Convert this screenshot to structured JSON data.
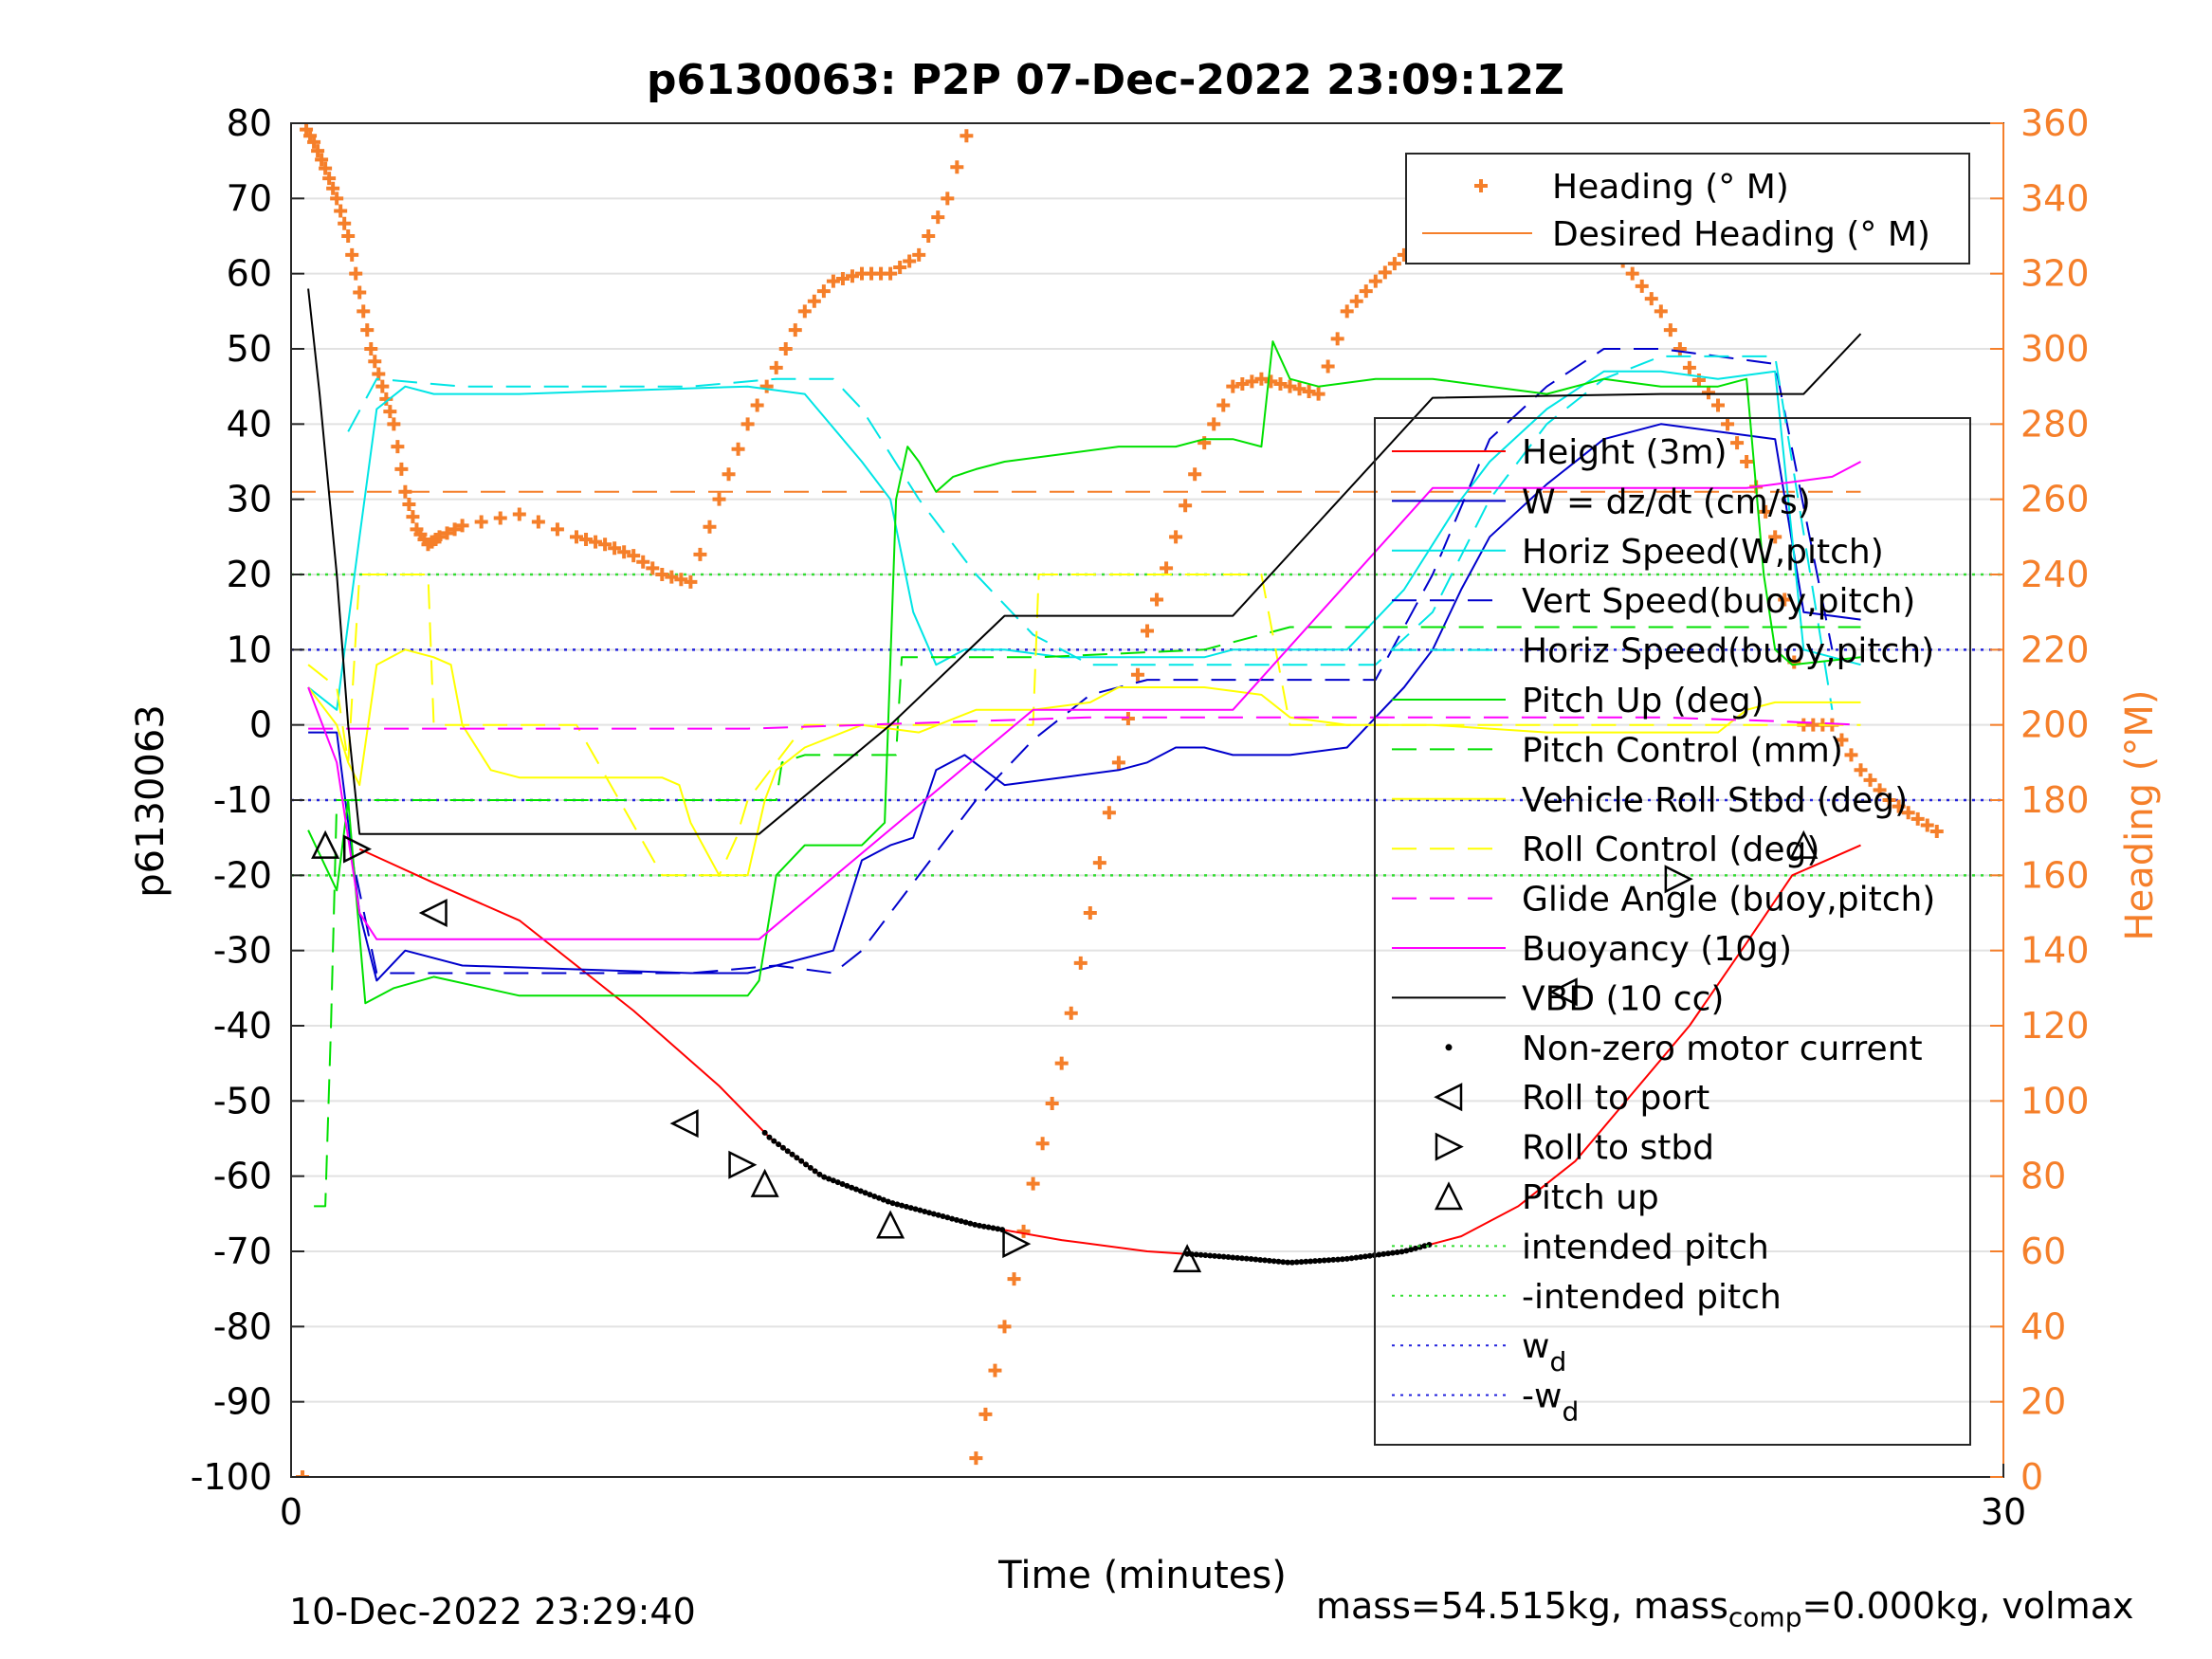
{
  "chart_data": {
    "type": "line",
    "title": "p6130063: P2P 07-Dec-2022 23:09:12Z",
    "xlabel": "Time (minutes)",
    "ylabel": "p6130063",
    "y2label": "Heading (°M)",
    "xlim": [
      0,
      30
    ],
    "ylim": [
      -100,
      80
    ],
    "y2lim": [
      0,
      360
    ],
    "xticks": [
      "0",
      "30"
    ],
    "yticks": [
      "80",
      "70",
      "60",
      "50",
      "40",
      "30",
      "20",
      "10",
      "0",
      "-10",
      "-20",
      "-30",
      "-40",
      "-50",
      "-60",
      "-70",
      "-80",
      "-90",
      "-100"
    ],
    "y2ticks": [
      "360",
      "340",
      "320",
      "300",
      "280",
      "260",
      "240",
      "220",
      "200",
      "180",
      "160",
      "140",
      "120",
      "100",
      "80",
      "60",
      "40",
      "20",
      "0"
    ],
    "grid": true,
    "colors": {
      "heading": "#f57f2a",
      "height": "#ff0000",
      "w": "#0000cc",
      "horiz": "#00e5e5",
      "pitch": "#00e000",
      "roll": "#ffff00",
      "glide": "#ff00ff",
      "vbd": "#000000"
    },
    "series": [
      {
        "name": "Heading (° M)",
        "axis": "right",
        "x": [
          0.2,
          0.4,
          0.6,
          0.8,
          1.0,
          1.2,
          1.4,
          1.6,
          1.8,
          2.0,
          2.2,
          2.4,
          2.6,
          3.0,
          4.0,
          5.0,
          5.5,
          6.0,
          6.5,
          7.0,
          7.5,
          8.0,
          8.5,
          9.0,
          9.5,
          10.0,
          10.5,
          11.0,
          11.5,
          12.0,
          12.5,
          13.0,
          13.5,
          14.0,
          14.5,
          15.0,
          15.5,
          16.0,
          16.5,
          17.0,
          17.5,
          18.0,
          18.5,
          19.0,
          19.5,
          20.0,
          20.5,
          21.0,
          21.5,
          22.0,
          22.5,
          23.0,
          23.5,
          24.0,
          24.5,
          25.0,
          25.5,
          26.0,
          26.5,
          27.0,
          27.5,
          28.0,
          28.5,
          29.0
        ],
        "y": [
          360,
          355,
          348,
          340,
          330,
          315,
          300,
          290,
          280,
          262,
          252,
          248,
          250,
          253,
          256,
          250,
          248,
          245,
          240,
          238,
          260,
          280,
          295,
          310,
          318,
          320,
          320,
          325,
          340,
          5,
          40,
          78,
          110,
          150,
          190,
          225,
          250,
          275,
          290,
          292,
          290,
          288,
          310,
          318,
          325,
          328,
          333,
          336,
          338,
          345,
          348,
          330,
          320,
          310,
          295,
          285,
          270,
          250,
          200,
          200,
          188,
          180,
          175,
          170
        ]
      },
      {
        "name": "Desired Heading (° M)",
        "axis": "right",
        "x": [
          0,
          27.5
        ],
        "y": [
          262,
          262
        ]
      },
      {
        "name": "Height (3m)",
        "x": [
          1.2,
          2.5,
          4.0,
          6.0,
          7.5,
          8.4,
          9.3,
          10.5,
          12.0,
          13.5,
          15.0,
          16.0,
          16.8,
          17.5,
          18.5,
          19.5,
          20.5,
          21.5,
          22.5,
          23.5,
          24.5,
          25.5,
          26.3,
          27.5
        ],
        "y": [
          -16.5,
          -21,
          -26,
          -38,
          -48,
          -55,
          -60,
          -63.5,
          -66.5,
          -68.5,
          -70,
          -70.5,
          -71,
          -71.5,
          -71,
          -70,
          -68,
          -64,
          -58,
          -49,
          -40,
          -29,
          -20,
          -16
        ]
      },
      {
        "name": "W = dz/dt (cm/s)",
        "x": [
          0.3,
          0.8,
          1.2,
          1.5,
          2.0,
          3.0,
          5.0,
          7.0,
          8.0,
          8.5,
          9.0,
          9.5,
          10.0,
          10.5,
          10.9,
          11.3,
          11.8,
          12.5,
          13.5,
          14.5,
          15.0,
          15.5,
          16.0,
          16.5,
          17.5,
          18.5,
          19.5,
          20.0,
          20.5,
          21.0,
          22.0,
          23.0,
          24.0,
          25.0,
          26.0,
          26.5,
          27.5
        ],
        "y": [
          -1,
          -1,
          -25,
          -34,
          -30,
          -32,
          -32.5,
          -33,
          -33,
          -32,
          -31,
          -30,
          -18,
          -16,
          -15,
          -6,
          -4,
          -8,
          -7,
          -6,
          -5,
          -3,
          -3,
          -4,
          -4,
          -3,
          5,
          10,
          18,
          25,
          32,
          38,
          40,
          39,
          38,
          15,
          14
        ]
      },
      {
        "name": "Horiz Speed(W,pitch)",
        "x": [
          0.3,
          0.8,
          1.2,
          1.5,
          2.0,
          2.5,
          4.0,
          6.0,
          8.0,
          9.0,
          10.0,
          10.5,
          10.9,
          11.3,
          11.8,
          12.5,
          13.5,
          15.0,
          16.0,
          16.5,
          17.5,
          18.5,
          19.5,
          20.0,
          20.5,
          21.0,
          22.0,
          23.0,
          24.0,
          25.0,
          26.0,
          26.5,
          27.5
        ],
        "y": [
          5,
          2,
          25,
          42,
          45,
          44,
          44,
          44.5,
          45,
          44,
          35,
          30,
          15,
          8,
          10,
          10,
          9,
          9,
          9,
          10,
          10,
          10,
          18,
          24,
          30,
          35,
          42,
          47,
          47,
          46,
          47,
          10,
          8
        ]
      },
      {
        "name": "Vert Speed(buoy,pitch)",
        "x": [
          1.0,
          1.5,
          3.0,
          5.0,
          7.0,
          8.5,
          9.5,
          10.0,
          11.0,
          12.0,
          13.0,
          14.0,
          15.0,
          16.0,
          17.5,
          19.0,
          20.0,
          21.0,
          22.0,
          23.0,
          24.0,
          25.0,
          26.0,
          27.0
        ],
        "y": [
          -15,
          -33,
          -33,
          -33,
          -33,
          -32,
          -33,
          -30,
          -20,
          -10,
          -2,
          4,
          6,
          6,
          6,
          6,
          20,
          38,
          45,
          50,
          50,
          49,
          48,
          10
        ]
      },
      {
        "name": "Horiz Speed(buoy,pitch)",
        "x": [
          1.0,
          1.5,
          3.0,
          5.0,
          7.0,
          8.5,
          9.5,
          10.0,
          11.0,
          12.0,
          13.0,
          14.0,
          15.0,
          16.0,
          17.5,
          19.0,
          20.0,
          21.0,
          22.0,
          23.0,
          24.0,
          25.0,
          26.0,
          27.0
        ],
        "y": [
          39,
          46,
          45,
          45,
          45,
          46,
          46,
          42,
          30,
          20,
          12,
          8,
          8,
          8,
          8,
          8,
          15,
          30,
          40,
          46,
          49,
          49,
          49,
          2
        ]
      },
      {
        "name": "Pitch Up (deg)",
        "x": [
          0.3,
          0.8,
          1.0,
          1.3,
          1.8,
          2.5,
          4.0,
          6.0,
          7.5,
          8.0,
          8.2,
          8.5,
          9.0,
          9.5,
          10.0,
          10.4,
          10.6,
          10.8,
          11.0,
          11.3,
          11.6,
          12.0,
          12.5,
          13.5,
          14.5,
          15.0,
          15.5,
          16.0,
          16.2,
          16.5,
          17.0,
          17.2,
          17.5,
          18.0,
          19.0,
          20.0,
          21.0,
          22.0,
          23.0,
          24.0,
          25.0,
          25.5,
          25.8,
          26.0,
          26.3,
          27.5
        ],
        "y": [
          -14,
          -22,
          -10,
          -37,
          -35,
          -33.5,
          -36,
          -36,
          -36,
          -36,
          -34,
          -20,
          -16,
          -16,
          -16,
          -13,
          30,
          37,
          35,
          31,
          33,
          34,
          35,
          36,
          37,
          37,
          37,
          38,
          38,
          38,
          37,
          51,
          46,
          45,
          46,
          46,
          45,
          44,
          46,
          45,
          45,
          46,
          20,
          10,
          8,
          9
        ]
      },
      {
        "name": "Pitch Control (mm)",
        "x": [
          0.4,
          0.6,
          0.7,
          0.8,
          1.0,
          1.5,
          2.0,
          8.5,
          8.6,
          9.0,
          10.0,
          10.6,
          10.7,
          13.0,
          13.1,
          16.0,
          17.0,
          17.5,
          18.0,
          22.0,
          25.0,
          25.5,
          26.0,
          27.5
        ],
        "y": [
          -64,
          -64,
          -40,
          -10,
          -10,
          -10,
          -10,
          -10,
          -5,
          -4,
          -4,
          -4,
          9,
          9,
          9,
          10,
          12,
          13,
          13,
          13,
          13,
          13,
          13,
          13
        ]
      },
      {
        "name": "Vehicle Roll Stbd (deg)",
        "x": [
          0.3,
          0.6,
          0.8,
          1.0,
          1.2,
          1.5,
          2.0,
          2.5,
          2.8,
          3.0,
          3.5,
          4.0,
          5.0,
          6.0,
          6.5,
          6.8,
          7.0,
          7.5,
          8.0,
          8.3,
          8.5,
          9.0,
          10.0,
          11.0,
          12.0,
          13.0,
          14.0,
          14.5,
          15.0,
          16.0,
          17.0,
          17.5,
          18.5,
          20.0,
          22.0,
          24.0,
          25.0,
          25.5,
          26.0,
          27.5
        ],
        "y": [
          5,
          2,
          0,
          -5,
          -8,
          8,
          10,
          9,
          8,
          0,
          -6,
          -7,
          -7,
          -7,
          -7,
          -8,
          -13,
          -20,
          -20,
          -10,
          -6,
          -3,
          0,
          -1,
          2,
          2,
          3,
          5,
          5,
          5,
          4,
          1,
          0,
          0,
          -1,
          -1,
          -1,
          2,
          3,
          3
        ]
      },
      {
        "name": "Roll Control (deg)",
        "x": [
          0.3,
          0.8,
          1.0,
          1.2,
          1.5,
          2.0,
          2.4,
          2.5,
          2.6,
          3.0,
          5.0,
          6.5,
          6.6,
          7.0,
          7.5,
          7.8,
          8.0,
          8.5,
          9.0,
          10.0,
          12.0,
          13.0,
          13.1,
          14.5,
          15.0,
          16.0,
          17.0,
          17.5,
          18.0,
          22.0,
          24.0,
          25.0,
          26.0,
          27.5
        ],
        "y": [
          8,
          5,
          -5,
          20,
          20,
          20,
          20,
          0,
          0,
          0,
          0,
          -20,
          -20,
          -20,
          -20,
          -15,
          -10,
          -5,
          0,
          0,
          0,
          0,
          20,
          20,
          20,
          20,
          20,
          0,
          0,
          0,
          0,
          0,
          0,
          0
        ]
      },
      {
        "name": "Glide Angle (buoy,pitch)",
        "x": [
          0.3,
          2.0,
          5.0,
          8.0,
          10.0,
          12.0,
          14.0,
          16.0,
          18.0,
          20.0,
          22.0,
          24.0,
          26.0,
          27.5
        ],
        "y": [
          -0.5,
          -0.5,
          -0.5,
          -0.5,
          0,
          0.5,
          1,
          1,
          1,
          1,
          1,
          1,
          0.5,
          0
        ]
      },
      {
        "name": "Buoyancy (10g)",
        "x": [
          0.3,
          0.8,
          1.0,
          1.2,
          1.5,
          8.2,
          13.0,
          15.0,
          16.0,
          16.5,
          20.0,
          24.0,
          25.5,
          27.0,
          27.5
        ],
        "y": [
          5,
          -5,
          -15,
          -25,
          -28.5,
          -28.5,
          2,
          2,
          2,
          2,
          31.5,
          31.5,
          31.5,
          33,
          35
        ]
      },
      {
        "name": "VBD (10 cc)",
        "x": [
          0.3,
          0.5,
          0.6,
          0.8,
          1.0,
          1.2,
          8.2,
          10.5,
          12.5,
          15.0,
          16.0,
          16.5,
          20.0,
          24.0,
          26.5,
          27.5
        ],
        "y": [
          58,
          44,
          36,
          20,
          0,
          -14.5,
          -14.5,
          0,
          14.5,
          14.5,
          14.5,
          14.5,
          43.5,
          44,
          44,
          52
        ]
      }
    ],
    "markers": {
      "roll_to_port": [
        [
          2.5,
          -25
        ],
        [
          6.9,
          -53
        ],
        [
          22.3,
          -35.5
        ]
      ],
      "roll_to_stbd": [
        [
          1.15,
          -16.5
        ],
        [
          7.9,
          -58.5
        ],
        [
          12.7,
          -69
        ],
        [
          24.3,
          -20.5
        ]
      ],
      "pitch_up": [
        [
          0.6,
          -16
        ],
        [
          8.3,
          -61
        ],
        [
          10.5,
          -66.5
        ],
        [
          15.7,
          -71
        ],
        [
          26.5,
          -16
        ]
      ]
    },
    "motor_current": {
      "x_ranges": [
        [
          8.3,
          12.5
        ],
        [
          15.7,
          20.0
        ]
      ]
    },
    "reference_lines": [
      {
        "name": "intended pitch",
        "y": 20
      },
      {
        "name": "-intended pitch",
        "y": -20
      },
      {
        "name": "w_d",
        "y": 10
      },
      {
        "name": "-w_d",
        "y": -10
      }
    ],
    "legend_top": [
      "Heading (° M)",
      "Desired Heading (° M)"
    ],
    "legend_main": [
      "Height (3m)",
      "W = dz/dt (cm/s)",
      "Horiz Speed(W,pitch)",
      "Vert Speed(buoy,pitch)",
      "Horiz Speed(buoy,pitch)",
      "Pitch Up (deg)",
      "Pitch Control (mm)",
      "Vehicle Roll Stbd (deg)",
      "Roll Control (deg)",
      "Glide Angle (buoy,pitch)",
      "Buoyancy (10g)",
      "VBD (10 cc)",
      "Non-zero motor current",
      "Roll to port",
      "Roll to stbd",
      "Pitch up",
      "intended pitch",
      "-intended pitch",
      "w",
      "-w"
    ],
    "legend_sub": "d",
    "legend_placement": "top-right"
  },
  "footer": {
    "date": "10-Dec-2022 23:29:40",
    "mass_prefix": "mass=54.515kg, mass",
    "mass_sub": "comp",
    "mass_suffix": "=0.000kg, volmax"
  }
}
